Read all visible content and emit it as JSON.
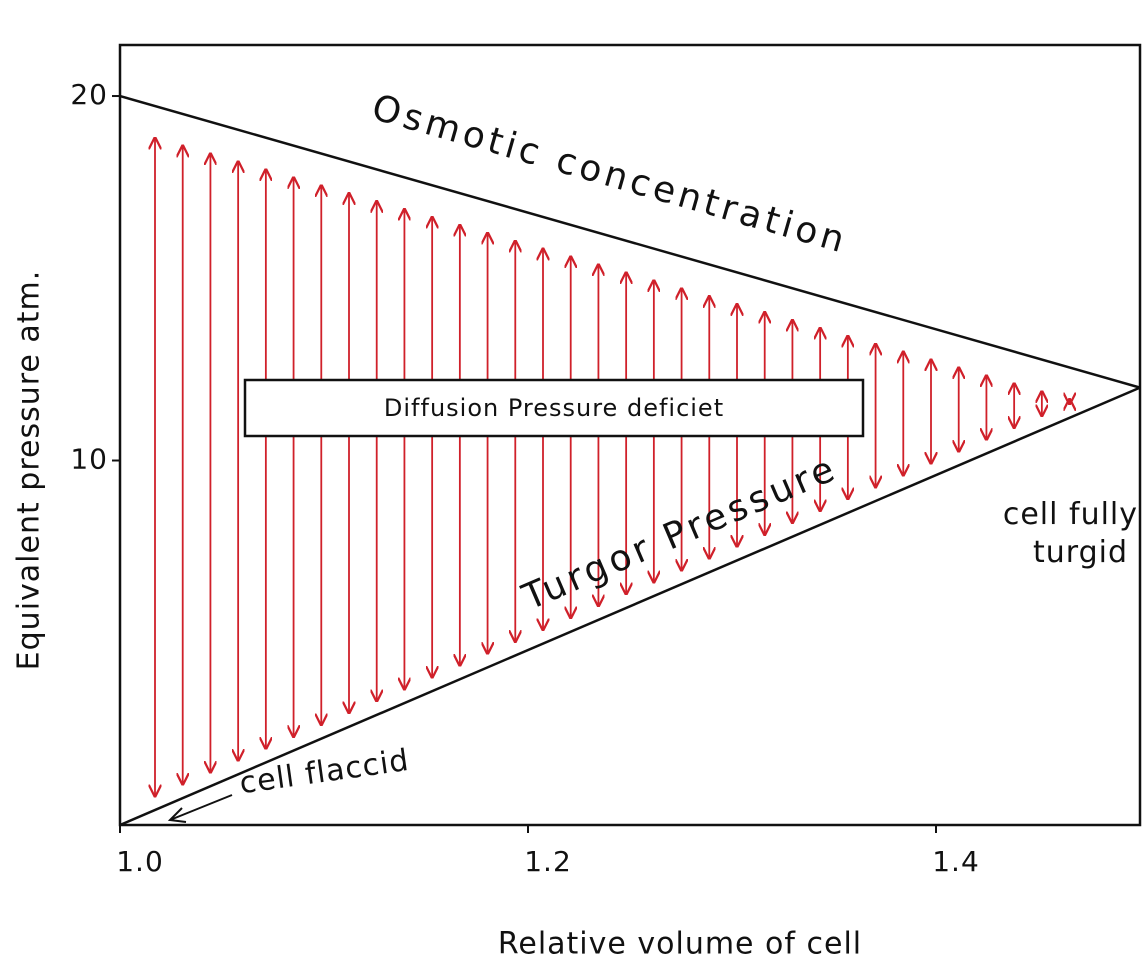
{
  "chart_data": {
    "type": "line",
    "x_label": "Relative volume of cell",
    "y_label": "Equivalent pressure atm.",
    "x": [
      1.0,
      1.5
    ],
    "series": [
      {
        "name": "Osmotic concentration",
        "color": "#111111",
        "values": [
          20,
          12
        ]
      },
      {
        "name": "Turgor Pressure",
        "color": "#111111",
        "values": [
          0,
          12
        ]
      }
    ],
    "annotations": [
      "Diffusion Pressure deficiet",
      "cell flaccid",
      "cell fully turgid"
    ],
    "arrow_color": "#d0202a",
    "xlim": [
      1.0,
      1.5
    ],
    "ylim": [
      0,
      21.4
    ],
    "xticks": [
      {
        "value": 1.0,
        "label": "1.0"
      },
      1.2,
      1.4
    ],
    "yticks": [
      10,
      20
    ]
  }
}
